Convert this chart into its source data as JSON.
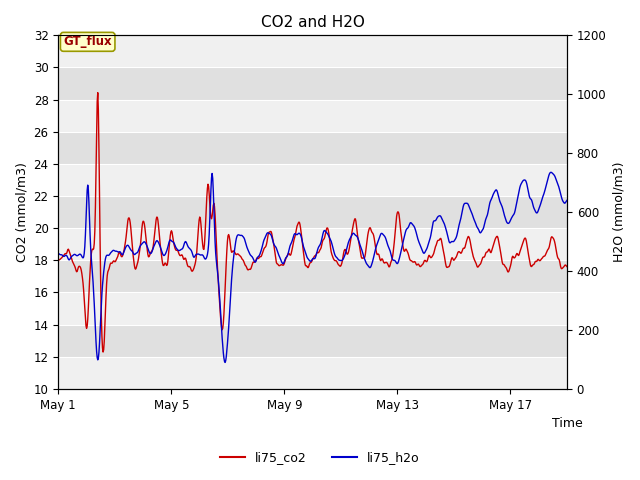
{
  "title": "CO2 and H2O",
  "xlabel": "Time",
  "ylabel_left": "CO2 (mmol/m3)",
  "ylabel_right": "H2O (mmol/m3)",
  "ylim_left": [
    10,
    32
  ],
  "ylim_right": [
    0,
    1200
  ],
  "legend_labels": [
    "li75_co2",
    "li75_h2o"
  ],
  "legend_colors": [
    "#cc0000",
    "#0000cc"
  ],
  "gt_flux_label": "GT_flux",
  "xtick_labels": [
    "May 1",
    "May 5",
    "May 9",
    "May 13",
    "May 17"
  ],
  "xtick_positions": [
    0,
    4,
    8,
    12,
    16
  ],
  "yticks_left": [
    10,
    12,
    14,
    16,
    18,
    20,
    22,
    24,
    26,
    28,
    30,
    32
  ],
  "yticks_right": [
    0,
    200,
    400,
    600,
    800,
    1000,
    1200
  ],
  "background_color": "#e0e0e0",
  "stripe_color": "#f0f0f0",
  "n_days": 18,
  "title_fontsize": 11,
  "axis_label_fontsize": 9,
  "tick_fontsize": 8.5,
  "legend_fontsize": 9
}
